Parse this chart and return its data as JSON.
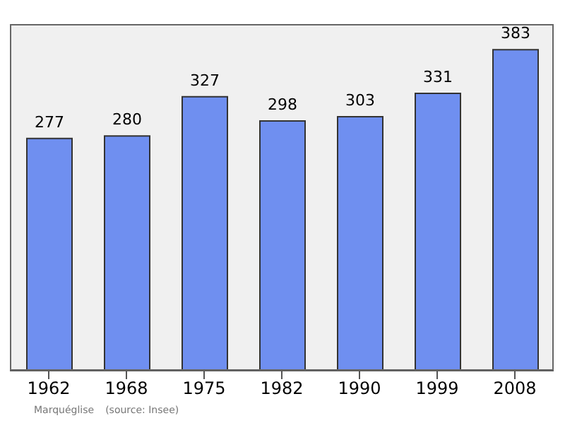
{
  "chart_data": {
    "type": "bar",
    "categories": [
      "1962",
      "1968",
      "1975",
      "1982",
      "1990",
      "1999",
      "2008"
    ],
    "values": [
      277,
      280,
      327,
      298,
      303,
      331,
      383
    ],
    "color": "#6f8ff0",
    "data_labels": true,
    "grid": false,
    "annotations": [
      "Marquéglise",
      "(source: Insee)"
    ]
  }
}
